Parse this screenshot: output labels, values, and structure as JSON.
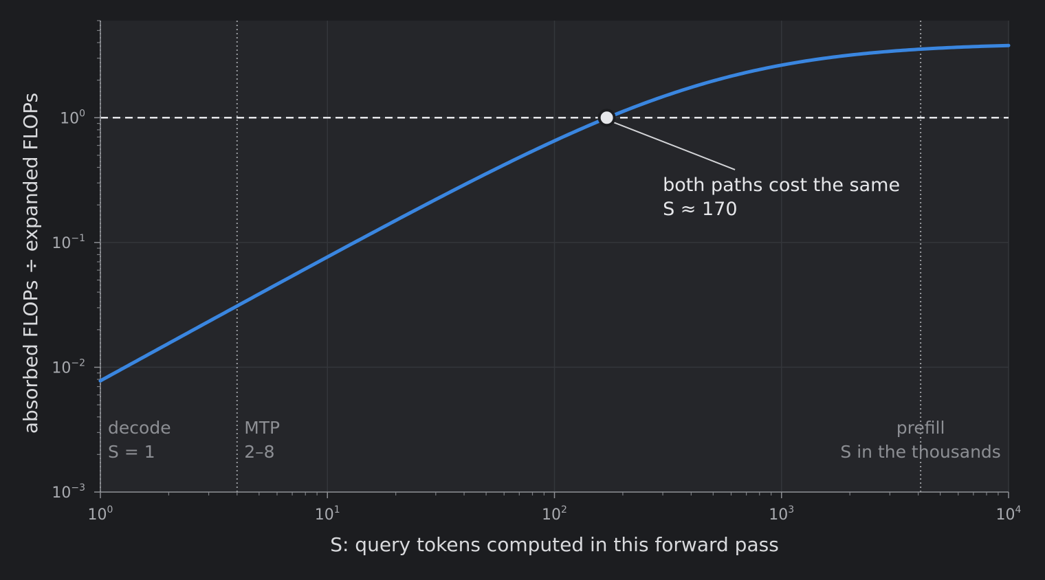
{
  "chart_data": {
    "type": "line",
    "x_scale": "log",
    "y_scale": "log",
    "xlim": [
      1,
      10000
    ],
    "ylim": [
      0.001,
      6
    ],
    "xlabel": "S: query tokens computed in this forward pass",
    "ylabel": "absorbed FLOPs ÷ expanded FLOPs",
    "grid": true,
    "x_ticks": [
      {
        "value": 1,
        "base": "10",
        "exp": "0"
      },
      {
        "value": 10,
        "base": "10",
        "exp": "1"
      },
      {
        "value": 100,
        "base": "10",
        "exp": "2"
      },
      {
        "value": 1000,
        "base": "10",
        "exp": "3"
      },
      {
        "value": 10000,
        "base": "10",
        "exp": "4"
      }
    ],
    "y_ticks": [
      {
        "value": 0.001,
        "base": "10",
        "exp": "−3"
      },
      {
        "value": 0.01,
        "base": "10",
        "exp": "−2"
      },
      {
        "value": 0.1,
        "base": "10",
        "exp": "−1"
      },
      {
        "value": 1,
        "base": "10",
        "exp": "0"
      }
    ],
    "series": [
      {
        "color": "#3a86e0",
        "model": {
          "a": 0.007805,
          "b": 0.001959
        },
        "x": [
          1,
          2,
          4,
          10,
          20,
          50,
          100,
          170,
          200,
          500,
          1000,
          2000,
          4000,
          10000
        ],
        "y": [
          0.0078,
          0.0156,
          0.031,
          0.076,
          0.149,
          0.349,
          0.65,
          1.0,
          1.14,
          2.08,
          2.72,
          3.21,
          3.52,
          3.73
        ]
      }
    ],
    "reference_line": {
      "y": 1,
      "style": "dashed",
      "color": "#e6e7ea"
    },
    "vertical_lines": [
      {
        "x": 1,
        "style": "dotted"
      },
      {
        "x": 4,
        "style": "dotted"
      },
      {
        "x": 4100,
        "style": "dotted"
      }
    ],
    "marker": {
      "x": 170,
      "y": 1
    },
    "annotation": {
      "lines": [
        "both paths cost the same",
        "S ≈ 170"
      ],
      "point_x": 170,
      "point_y": 1,
      "text_x": 300,
      "text_y": 0.29
    },
    "region_labels": [
      {
        "lines": [
          "decode",
          "S = 1"
        ],
        "x": 1.08,
        "align": "start"
      },
      {
        "lines": [
          "MTP",
          "2–8"
        ],
        "x": 4.3,
        "align": "start"
      },
      {
        "lines": [
          "prefill",
          "S in the thousands"
        ],
        "x": 4100,
        "align": "middle"
      }
    ],
    "colors": {
      "background": "#1c1d20",
      "plot_background": "#25262a",
      "grid": "#34363b",
      "line": "#3a86e0",
      "reference": "#e6e7ea",
      "marker_fill": "#e6e7ea",
      "marker_stroke": "#1c1d20"
    }
  }
}
